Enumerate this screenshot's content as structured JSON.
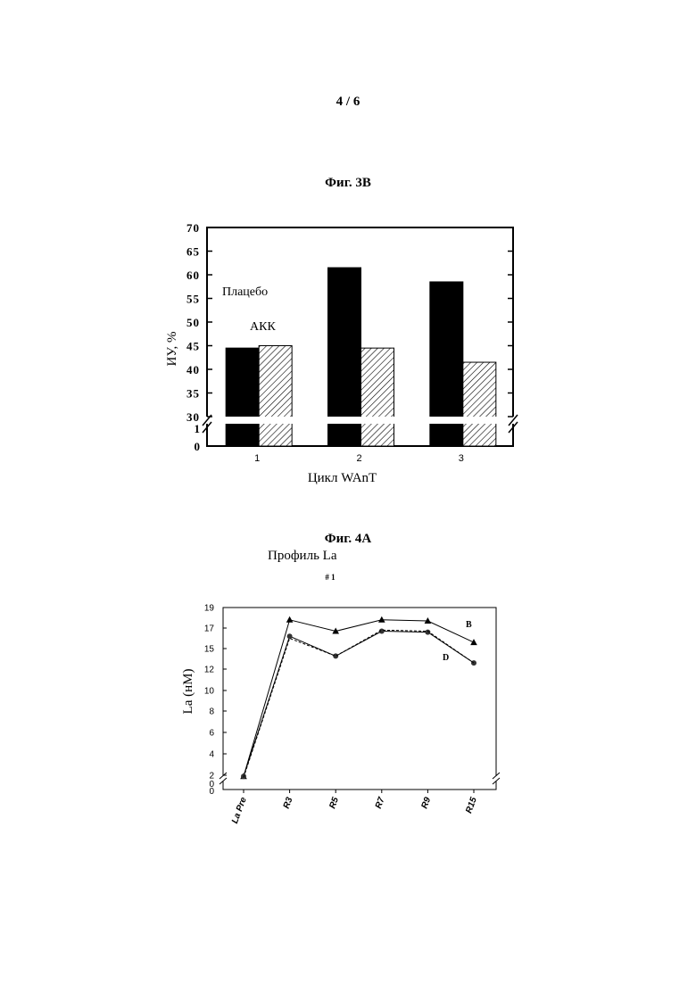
{
  "page": {
    "number": "4 / 6"
  },
  "chart_data": [
    {
      "type": "bar",
      "title": "Фиг. 3B",
      "xlabel": "Цикл WAnT",
      "ylabel": "ИУ, %",
      "categories": [
        "1",
        "2",
        "3"
      ],
      "ylim": [
        30,
        70
      ],
      "yticks": [
        "70",
        "65",
        "60",
        "55",
        "50",
        "45",
        "40",
        "35",
        "30"
      ],
      "axis_break": true,
      "below_break_ticks": [
        "1",
        "0"
      ],
      "series": [
        {
          "name": "Плацебо",
          "values": [
            44.5,
            61.5,
            58.5
          ],
          "color": "#000000",
          "pattern": "solid"
        },
        {
          "name": "АКК",
          "values": [
            45,
            44.5,
            41.5
          ],
          "color": "#ffffff",
          "pattern": "hatched"
        }
      ],
      "legend_placement": "inside-left"
    },
    {
      "type": "line",
      "title": "Фиг. 4A",
      "subtitle": "Профиль La",
      "panel_label": "# 1",
      "xlabel": "",
      "ylabel": "La (нМ)",
      "categories": [
        "La Pre",
        "R3",
        "R5",
        "R7",
        "R9",
        "R15"
      ],
      "ylim": [
        2,
        19
      ],
      "yticks": [
        "19",
        "17",
        "15",
        "12",
        "10",
        "8",
        "6",
        "4",
        "2"
      ],
      "ytick_values": [
        19,
        17,
        15,
        12,
        10,
        8,
        6,
        4,
        2
      ],
      "axis_break": true,
      "below_break_ticks": [
        "0",
        "0"
      ],
      "series": [
        {
          "name": "B",
          "marker": "triangle",
          "line": "solid",
          "color": "#000000",
          "values": [
            1.8,
            17.8,
            16.7,
            17.8,
            17.7,
            15.6
          ]
        },
        {
          "name": "D",
          "marker": "circle",
          "line": "solid",
          "color": "#000000",
          "values": [
            1.8,
            16.2,
            13.9,
            16.7,
            16.6,
            12.9
          ]
        },
        {
          "name": "",
          "marker": "none",
          "line": "dashed",
          "color": "#000000",
          "values": [
            1.6,
            16.0,
            13.9,
            16.8,
            16.7,
            12.9
          ]
        }
      ]
    }
  ]
}
